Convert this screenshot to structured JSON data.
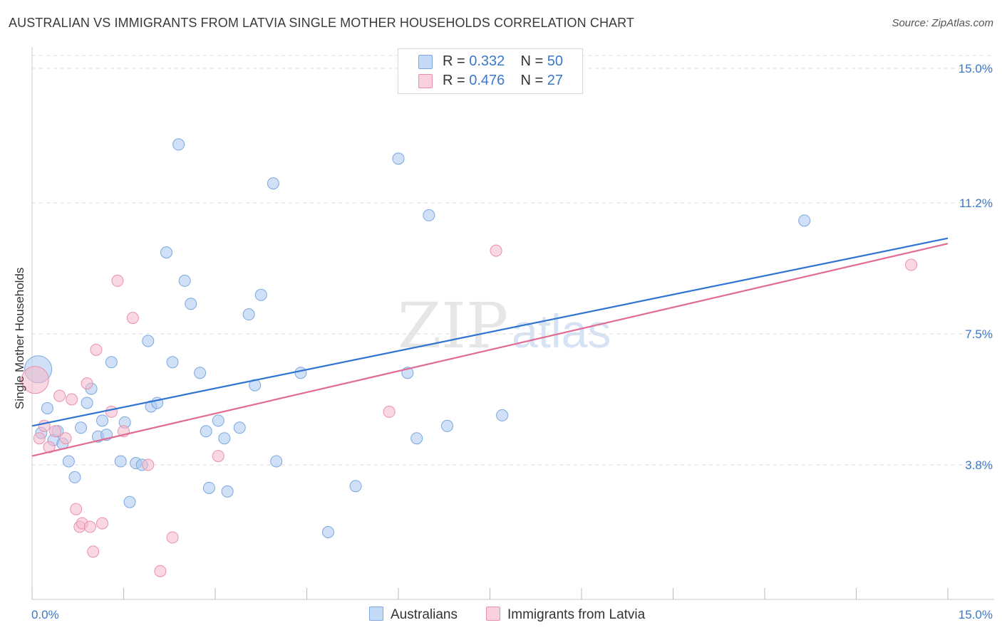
{
  "title": "AUSTRALIAN VS IMMIGRANTS FROM LATVIA SINGLE MOTHER HOUSEHOLDS CORRELATION CHART",
  "source": "Source: ZipAtlas.com",
  "watermark": {
    "zip": "ZIP",
    "atlas": "atlas"
  },
  "legend": {
    "rows": [
      {
        "r_label": "R = ",
        "r_value": "0.332",
        "n_label": "N = ",
        "n_value": "50",
        "color": "#a9c8f0"
      },
      {
        "r_label": "R = ",
        "r_value": "0.476",
        "n_label": "N = ",
        "n_value": "27",
        "color": "#f5b8cb"
      }
    ]
  },
  "bottom_legend": [
    {
      "label": "Australians",
      "color": "#a9c8f0"
    },
    {
      "label": "Immigrants from Latvia",
      "color": "#f5b8cb"
    }
  ],
  "chart_data": {
    "type": "scatter",
    "ylabel": "Single Mother Households",
    "xlim": [
      0,
      15
    ],
    "ylim": [
      0,
      15.3
    ],
    "x_tick_labels": [
      "0.0%",
      "15.0%"
    ],
    "y_tick_labels": [
      "3.8%",
      "7.5%",
      "11.2%",
      "15.0%"
    ],
    "y_ticks": [
      3.8,
      7.5,
      11.2,
      15.0
    ],
    "grid": true,
    "series": [
      {
        "name": "Australians",
        "color": "#a9c8f0",
        "stroke": "#7aa7e0",
        "trend_color": "#2f74d0",
        "trend": {
          "x0": 0,
          "y0": 4.9,
          "x1": 15,
          "y1": 10.2
        },
        "points": [
          {
            "x": 0.1,
            "y": 6.5,
            "big": true
          },
          {
            "x": 0.15,
            "y": 4.7
          },
          {
            "x": 0.25,
            "y": 5.4
          },
          {
            "x": 0.35,
            "y": 4.5
          },
          {
            "x": 0.42,
            "y": 4.75
          },
          {
            "x": 0.5,
            "y": 4.4
          },
          {
            "x": 0.6,
            "y": 3.9
          },
          {
            "x": 0.7,
            "y": 3.45
          },
          {
            "x": 0.8,
            "y": 4.85
          },
          {
            "x": 0.9,
            "y": 5.55
          },
          {
            "x": 0.97,
            "y": 5.95
          },
          {
            "x": 1.08,
            "y": 4.6
          },
          {
            "x": 1.15,
            "y": 5.05
          },
          {
            "x": 1.22,
            "y": 4.65
          },
          {
            "x": 1.3,
            "y": 6.7
          },
          {
            "x": 1.45,
            "y": 3.9
          },
          {
            "x": 1.52,
            "y": 5.0
          },
          {
            "x": 1.6,
            "y": 2.75
          },
          {
            "x": 1.7,
            "y": 3.85
          },
          {
            "x": 1.8,
            "y": 3.8
          },
          {
            "x": 1.9,
            "y": 7.3
          },
          {
            "x": 1.95,
            "y": 5.45
          },
          {
            "x": 2.05,
            "y": 5.55
          },
          {
            "x": 2.2,
            "y": 9.8
          },
          {
            "x": 2.3,
            "y": 6.7
          },
          {
            "x": 2.4,
            "y": 12.85
          },
          {
            "x": 2.5,
            "y": 9.0
          },
          {
            "x": 2.6,
            "y": 8.35
          },
          {
            "x": 2.75,
            "y": 6.4
          },
          {
            "x": 2.85,
            "y": 4.75
          },
          {
            "x": 2.9,
            "y": 3.15
          },
          {
            "x": 3.05,
            "y": 5.05
          },
          {
            "x": 3.15,
            "y": 4.55
          },
          {
            "x": 3.2,
            "y": 3.05
          },
          {
            "x": 3.4,
            "y": 4.85
          },
          {
            "x": 3.55,
            "y": 8.05
          },
          {
            "x": 3.65,
            "y": 6.05
          },
          {
            "x": 3.75,
            "y": 8.6
          },
          {
            "x": 3.95,
            "y": 11.75
          },
          {
            "x": 4.0,
            "y": 3.9
          },
          {
            "x": 4.4,
            "y": 6.4
          },
          {
            "x": 4.85,
            "y": 1.9
          },
          {
            "x": 5.3,
            "y": 3.2
          },
          {
            "x": 6.0,
            "y": 12.45
          },
          {
            "x": 6.15,
            "y": 6.4
          },
          {
            "x": 6.3,
            "y": 4.55
          },
          {
            "x": 6.5,
            "y": 10.85
          },
          {
            "x": 6.8,
            "y": 4.9
          },
          {
            "x": 7.7,
            "y": 5.2
          },
          {
            "x": 12.65,
            "y": 10.7
          }
        ]
      },
      {
        "name": "Immigrants from Latvia",
        "color": "#f5b8cb",
        "stroke": "#e990ad",
        "trend_color": "#e06b93",
        "trend": {
          "x0": 0,
          "y0": 4.05,
          "x1": 15,
          "y1": 10.05
        },
        "points": [
          {
            "x": 0.05,
            "y": 6.2,
            "big": true
          },
          {
            "x": 0.12,
            "y": 4.55
          },
          {
            "x": 0.2,
            "y": 4.9
          },
          {
            "x": 0.28,
            "y": 4.3
          },
          {
            "x": 0.38,
            "y": 4.75
          },
          {
            "x": 0.45,
            "y": 5.75
          },
          {
            "x": 0.55,
            "y": 4.55
          },
          {
            "x": 0.65,
            "y": 5.65
          },
          {
            "x": 0.72,
            "y": 2.55
          },
          {
            "x": 0.78,
            "y": 2.05
          },
          {
            "x": 0.82,
            "y": 2.15
          },
          {
            "x": 0.9,
            "y": 6.1
          },
          {
            "x": 0.95,
            "y": 2.05
          },
          {
            "x": 1.0,
            "y": 1.35
          },
          {
            "x": 1.05,
            "y": 7.05
          },
          {
            "x": 1.15,
            "y": 2.15
          },
          {
            "x": 1.3,
            "y": 5.3
          },
          {
            "x": 1.4,
            "y": 9.0
          },
          {
            "x": 1.5,
            "y": 4.75
          },
          {
            "x": 1.65,
            "y": 7.95
          },
          {
            "x": 1.9,
            "y": 3.8
          },
          {
            "x": 2.1,
            "y": 0.8
          },
          {
            "x": 2.3,
            "y": 1.75
          },
          {
            "x": 3.05,
            "y": 4.05
          },
          {
            "x": 5.85,
            "y": 5.3
          },
          {
            "x": 7.6,
            "y": 9.85
          },
          {
            "x": 14.4,
            "y": 9.45
          }
        ]
      }
    ]
  }
}
